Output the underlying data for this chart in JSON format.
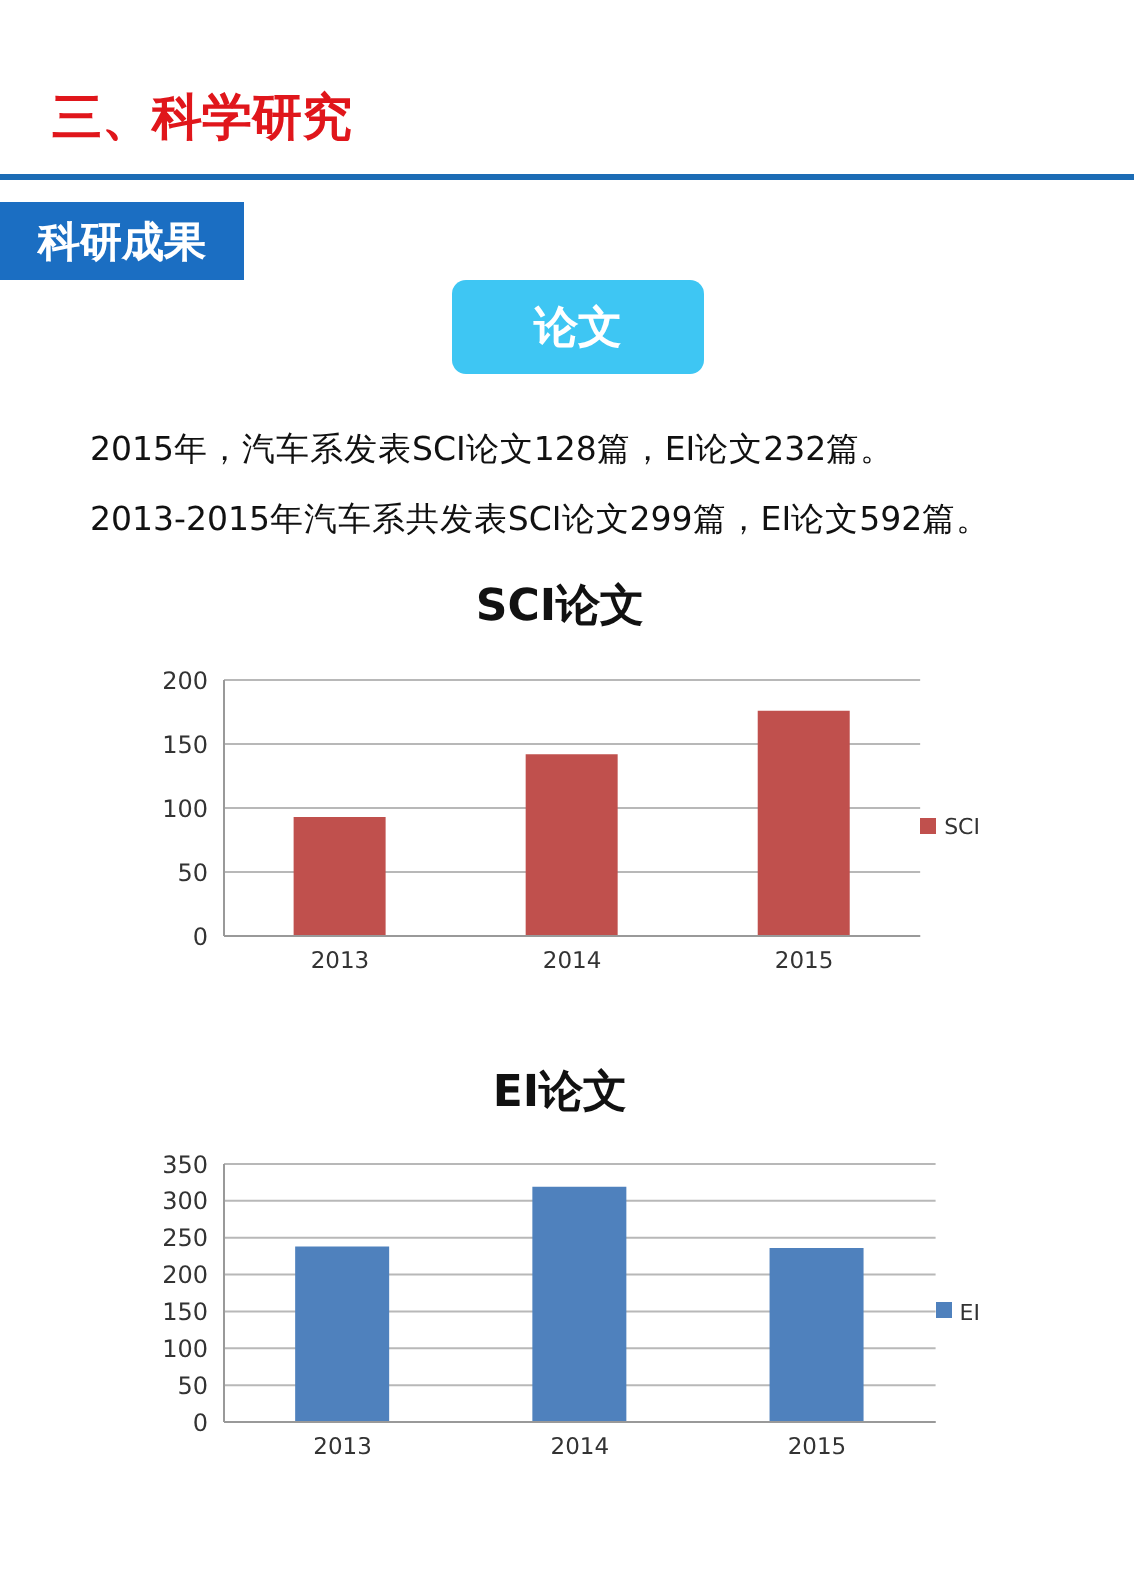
{
  "chart_data": [
    {
      "type": "other",
      "title": "三、科学研究",
      "annotations": [
        "科研成果",
        "论文",
        "2015年，汽车系发表SCI论文128篇，EI论文232篇。",
        "2013-2015年汽车系共发表SCI论文299篇，EI论文592篇。"
      ]
    },
    {
      "type": "bar",
      "title": "SCI论文",
      "categories": [
        "2013",
        "2014",
        "2015"
      ],
      "series": [
        {
          "name": "SCI",
          "color": "#c0504d",
          "values": [
            93,
            142,
            176
          ]
        }
      ],
      "ylim": [
        0,
        200
      ],
      "yticks": [
        0,
        50,
        100,
        150,
        200
      ],
      "grid": "y",
      "legend": "right"
    },
    {
      "type": "bar",
      "title": "EI论文",
      "categories": [
        "2013",
        "2014",
        "2015"
      ],
      "series": [
        {
          "name": "EI",
          "color": "#4f81bd",
          "values": [
            238,
            319,
            236
          ]
        }
      ],
      "ylim": [
        0,
        350
      ],
      "yticks": [
        0,
        50,
        100,
        150,
        200,
        250,
        300,
        350
      ],
      "grid": "y",
      "legend": "right"
    }
  ]
}
